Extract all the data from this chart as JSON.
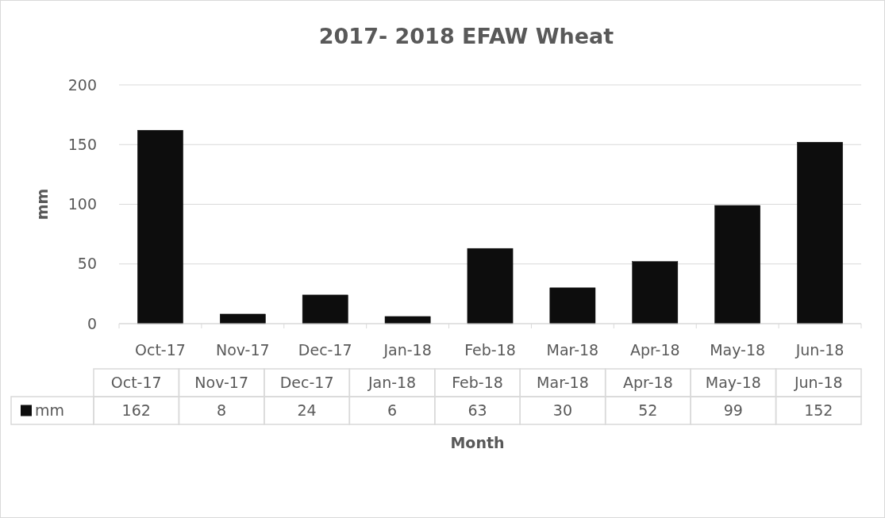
{
  "chart_data": {
    "type": "bar",
    "title": "2017- 2018 EFAW Wheat",
    "xlabel": "Month",
    "ylabel": "mm",
    "categories": [
      "Oct-17",
      "Nov-17",
      "Dec-17",
      "Jan-18",
      "Feb-18",
      "Mar-18",
      "Apr-18",
      "May-18",
      "Jun-18"
    ],
    "series": [
      {
        "name": "mm",
        "color": "#0d0d0d",
        "values": [
          162,
          8,
          24,
          6,
          63,
          30,
          52,
          99,
          152
        ]
      }
    ],
    "ylim": [
      0,
      200
    ],
    "yticks": [
      0,
      50,
      100,
      150,
      200
    ],
    "grid": "y",
    "legend": "bottom",
    "data_labels": true
  }
}
